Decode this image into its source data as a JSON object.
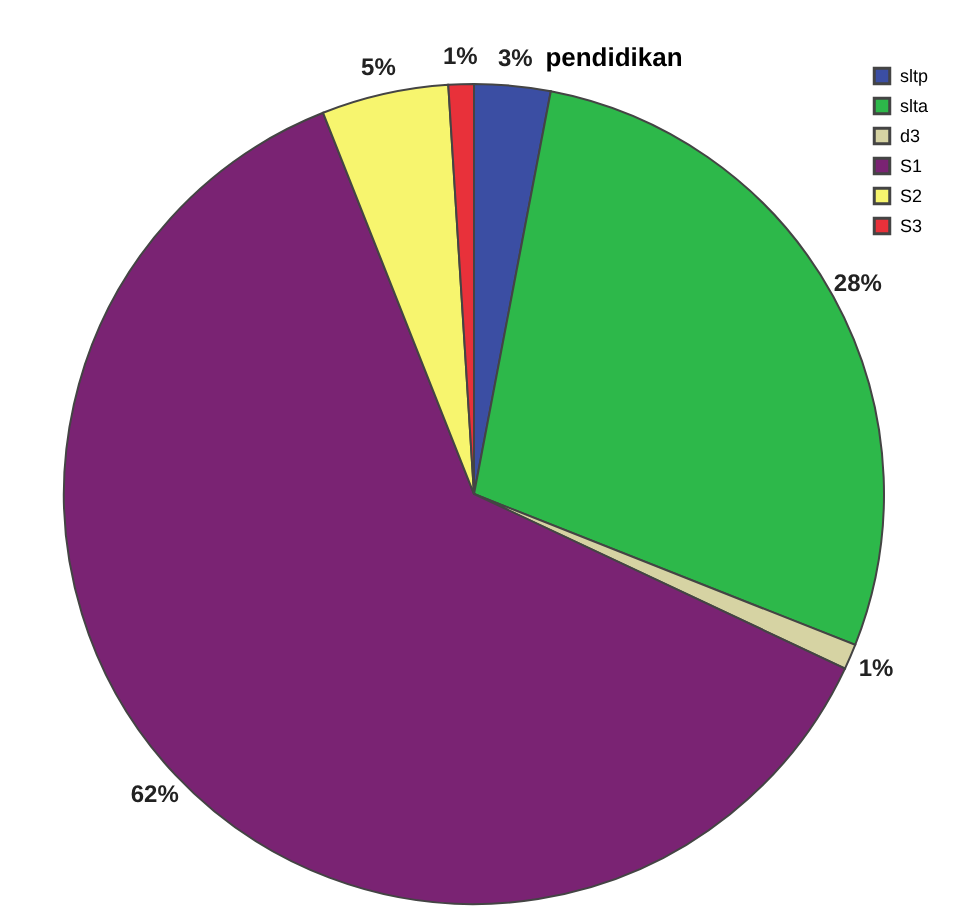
{
  "chart_data": {
    "type": "pie",
    "title": "pendidikan",
    "categories": [
      "sltp",
      "slta",
      "d3",
      "S1",
      "S2",
      "S3"
    ],
    "values": [
      3,
      28,
      1,
      62,
      5,
      1
    ],
    "colors": [
      "#3b4ea3",
      "#2db84a",
      "#d6d3a3",
      "#7a2373",
      "#f7f56e",
      "#e8313a"
    ],
    "value_labels": [
      "3%",
      "28%",
      "1%",
      "62%",
      "5%",
      "1%"
    ],
    "legend": "top right"
  }
}
